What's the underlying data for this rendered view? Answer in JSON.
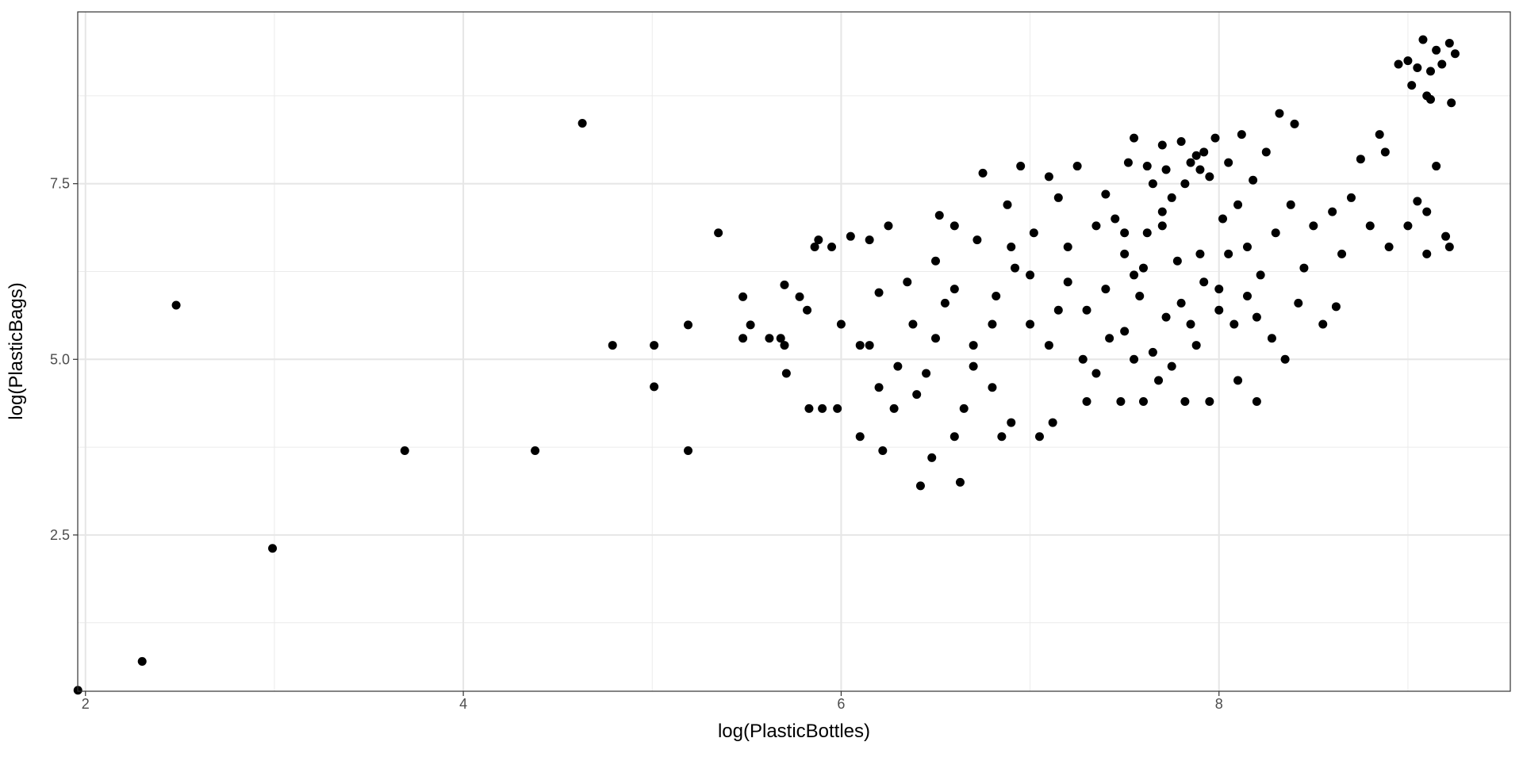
{
  "chart_data": {
    "type": "scatter",
    "x_label": "log(PlasticBottles)",
    "y_label": "log(PlasticBags)",
    "xlim": [
      1.959,
      9.542
    ],
    "ylim": [
      0.276,
      9.945
    ],
    "xticks": [
      2,
      4,
      6,
      8
    ],
    "yticks": [
      2.5,
      {
        "value": 5.0,
        "label": "5.0"
      },
      7.5
    ],
    "x_minor_ticks": [
      3,
      5,
      7,
      9
    ],
    "y_minor_ticks": [
      1.25,
      3.75,
      6.25,
      8.75
    ],
    "grid": true,
    "color": "#000000",
    "x": [
      1.96,
      2.3,
      2.48,
      2.99,
      3.69,
      4.38,
      4.63,
      4.79,
      5.01,
      5.01,
      5.19,
      5.19,
      5.35,
      5.48,
      5.48,
      5.52,
      5.62,
      5.68,
      5.7,
      5.71,
      5.7,
      5.78,
      5.82,
      5.83,
      5.86,
      5.88,
      5.9,
      5.95,
      5.98,
      6.0,
      6.05,
      6.1,
      6.1,
      6.15,
      6.2,
      6.2,
      6.22,
      6.25,
      6.3,
      6.35,
      6.38,
      6.4,
      6.42,
      6.48,
      6.5,
      6.52,
      6.55,
      6.6,
      6.63,
      6.65,
      6.7,
      6.72,
      6.75,
      6.8,
      6.82,
      6.85,
      6.88,
      6.9,
      6.92,
      6.95,
      7.0,
      7.02,
      7.05,
      7.1,
      7.12,
      7.15,
      7.2,
      7.25,
      7.28,
      7.3,
      7.35,
      7.4,
      7.42,
      7.48,
      7.5,
      7.52,
      7.55,
      7.58,
      7.6,
      7.62,
      7.65,
      7.68,
      7.7,
      7.72,
      7.75,
      7.78,
      7.8,
      7.82,
      7.85,
      7.88,
      7.9,
      7.92,
      7.95,
      7.98,
      8.0,
      8.02,
      8.05,
      8.08,
      8.1,
      8.12,
      8.15,
      8.18,
      8.2,
      8.22,
      8.25,
      8.28,
      8.3,
      8.32,
      8.35,
      8.38,
      8.4,
      8.42,
      8.45,
      8.5,
      8.55,
      8.6,
      8.62,
      8.65,
      8.7,
      8.75,
      8.8,
      8.85,
      8.88,
      8.9,
      9.0,
      9.05,
      9.1,
      9.15,
      9.2,
      9.22,
      9.1,
      8.95,
      9.0,
      9.05,
      9.08,
      9.12,
      9.15,
      9.18,
      9.22,
      9.25,
      9.02,
      9.1,
      9.23,
      9.12,
      6.6,
      6.8,
      7.0,
      7.1,
      7.3,
      7.5,
      7.6,
      7.7,
      7.8,
      7.9,
      8.0,
      8.1,
      8.2,
      6.9,
      7.2,
      7.4,
      7.45,
      7.65,
      7.85,
      7.95,
      8.05,
      6.5,
      6.7,
      7.35,
      7.55,
      7.75,
      6.45,
      6.28,
      6.15,
      6.6,
      7.15,
      7.88,
      7.72,
      7.62,
      7.82,
      7.92,
      7.7,
      7.5,
      7.55,
      8.15
    ],
    "values": [
      0.29,
      0.7,
      5.77,
      2.31,
      3.7,
      3.7,
      8.36,
      5.2,
      5.2,
      4.61,
      3.7,
      5.49,
      6.8,
      5.89,
      5.3,
      5.49,
      5.3,
      5.3,
      5.2,
      4.8,
      6.06,
      5.89,
      5.7,
      4.3,
      6.6,
      6.7,
      4.3,
      6.6,
      4.3,
      5.5,
      6.75,
      5.2,
      3.9,
      6.7,
      4.6,
      5.95,
      3.7,
      6.9,
      4.9,
      6.1,
      5.5,
      4.5,
      3.2,
      3.6,
      6.4,
      7.05,
      5.8,
      3.9,
      3.25,
      4.3,
      5.2,
      6.7,
      7.65,
      4.6,
      5.9,
      3.9,
      7.2,
      4.1,
      6.3,
      7.75,
      5.5,
      6.8,
      3.9,
      7.6,
      4.1,
      5.7,
      6.1,
      7.75,
      5.0,
      4.4,
      6.9,
      7.35,
      5.3,
      4.4,
      6.5,
      7.8,
      8.15,
      5.9,
      4.4,
      6.8,
      7.5,
      4.7,
      8.05,
      5.6,
      7.3,
      6.4,
      8.1,
      4.4,
      7.8,
      5.2,
      7.7,
      6.1,
      4.4,
      8.15,
      5.7,
      7.0,
      6.5,
      5.5,
      4.7,
      8.2,
      5.9,
      7.55,
      4.4,
      6.2,
      7.95,
      5.3,
      6.8,
      8.5,
      5.0,
      7.2,
      8.35,
      5.8,
      6.3,
      6.9,
      5.5,
      7.1,
      5.75,
      6.5,
      7.3,
      7.85,
      6.9,
      8.2,
      7.95,
      6.6,
      6.9,
      7.25,
      6.5,
      7.75,
      6.75,
      6.6,
      7.1,
      9.2,
      9.25,
      9.15,
      9.55,
      9.1,
      9.4,
      9.2,
      9.5,
      9.35,
      8.9,
      8.75,
      8.65,
      8.7,
      6.0,
      5.5,
      6.2,
      5.2,
      5.7,
      5.4,
      6.3,
      6.9,
      5.8,
      6.5,
      6.0,
      7.2,
      5.6,
      6.6,
      6.6,
      6.0,
      7.0,
      5.1,
      5.5,
      7.6,
      7.8,
      5.3,
      4.9,
      4.8,
      5.0,
      4.9,
      4.8,
      4.3,
      5.2,
      6.9,
      7.3,
      7.9,
      7.7,
      7.75,
      7.5,
      7.95,
      7.1,
      6.8,
      6.2,
      6.6
    ]
  }
}
